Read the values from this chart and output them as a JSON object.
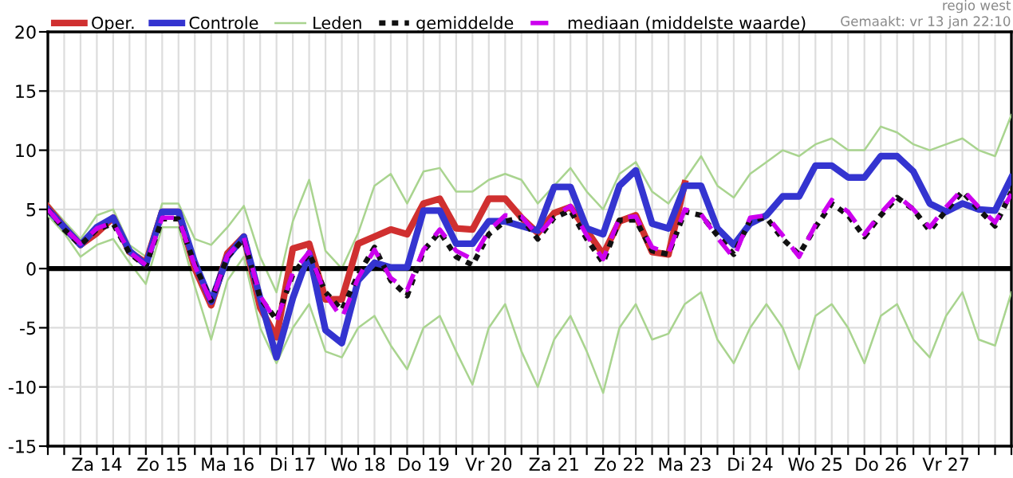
{
  "chart_data": {
    "type": "line",
    "categories": [
      null,
      null,
      null,
      "Za 14",
      null,
      null,
      null,
      "Zo 15",
      null,
      null,
      null,
      "Ma 16",
      null,
      null,
      null,
      "Di 17",
      null,
      null,
      null,
      "Wo 18",
      null,
      null,
      null,
      "Do 19",
      null,
      null,
      null,
      "Vr 20",
      null,
      null,
      null,
      "Za 21",
      null,
      null,
      null,
      "Zo 22",
      null,
      null,
      null,
      "Ma 23",
      null,
      null,
      null,
      "Di 24",
      null,
      null,
      null,
      "Wo 25",
      null,
      null,
      null,
      "Do 26",
      null,
      null,
      null,
      "Vr 27",
      null,
      null,
      null,
      null
    ],
    "series": [
      {
        "name": "Oper.",
        "color": "#d03030",
        "line_style": "solid",
        "values": [
          5.2,
          3.5,
          2.0,
          3.0,
          4.3,
          1.4,
          0.5,
          4.8,
          4.8,
          0.0,
          -3.1,
          1.3,
          2.7,
          -3.3,
          -5.8,
          1.7,
          2.1,
          -2.6,
          -2.6,
          2.1,
          2.7,
          3.3,
          2.9,
          5.5,
          5.9,
          3.4,
          3.3,
          5.9,
          5.9,
          4.3,
          3.0,
          4.7,
          5.2,
          3.2,
          1.2,
          4.0,
          4.5,
          1.4,
          1.2,
          7.2,
          null,
          null,
          null,
          null,
          null,
          null,
          null,
          null,
          null,
          null,
          null,
          null,
          null,
          null,
          null,
          null,
          null,
          null,
          null,
          null
        ]
      },
      {
        "name": "Controle",
        "color": "#3434d0",
        "line_style": "solid",
        "values": [
          5.0,
          3.5,
          2.0,
          3.5,
          4.3,
          1.5,
          0.3,
          4.8,
          4.8,
          0.5,
          -2.8,
          1.0,
          2.7,
          -2.5,
          -7.5,
          -2.5,
          1.3,
          -5.2,
          -6.3,
          -1.0,
          0.5,
          0.1,
          0.1,
          4.9,
          4.9,
          2.1,
          2.1,
          4.0,
          4.0,
          3.6,
          3.2,
          6.9,
          6.9,
          3.4,
          2.9,
          7.0,
          8.3,
          3.8,
          3.4,
          7.0,
          7.0,
          3.4,
          2.0,
          3.8,
          4.5,
          6.1,
          6.1,
          8.7,
          8.7,
          7.7,
          7.7,
          9.5,
          9.5,
          8.2,
          5.5,
          4.8,
          5.5,
          5.0,
          4.9,
          7.7
        ]
      },
      {
        "name": "Leden",
        "color": "#a9d48f",
        "line_style": "solid",
        "values": [
          5.5,
          4,
          2.5,
          4.5,
          5,
          2,
          1,
          5.5,
          5.5,
          2.5,
          2,
          3.5,
          5.3,
          1,
          -2,
          4,
          7.5,
          1.5,
          0,
          3,
          7,
          8,
          5.5,
          8.2,
          8.5,
          6.5,
          6.5,
          7.5,
          8,
          7.5,
          5.5,
          7,
          8.5,
          6.5,
          5,
          8,
          9,
          6.5,
          5.5,
          7.5,
          9.5,
          7,
          6,
          8,
          9,
          10,
          9.5,
          10.5,
          11,
          10,
          10,
          12,
          11.5,
          10.5,
          10,
          10.5,
          11,
          10,
          9.5,
          13
        ]
      },
      {
        "color": "#a9d48f",
        "line_style": "solid",
        "values": [
          4.5,
          3,
          1,
          2,
          2.5,
          0.5,
          -1.3,
          3.5,
          3.5,
          -1.5,
          -6,
          -1,
          1,
          -5,
          -8,
          -5,
          -3,
          -7,
          -7.5,
          -5,
          -4,
          -6.5,
          -8.5,
          -5,
          -4,
          -7,
          -9.8,
          -5,
          -3,
          -7,
          -10,
          -6,
          -4,
          -7,
          -10.5,
          -5,
          -3,
          -6,
          -5.5,
          -3,
          -2,
          -6,
          -8,
          -5,
          -3,
          -5,
          -8.5,
          -4,
          -3,
          -5,
          -8,
          -4,
          -3,
          -6,
          -7.5,
          -4,
          -2,
          -6,
          -6.5,
          -2
        ]
      },
      {
        "name": "gemiddelde",
        "color": "#111111",
        "line_style": "dotted",
        "values": [
          5.0,
          3.3,
          2.0,
          3.3,
          3.8,
          1.3,
          0.2,
          4.2,
          4.2,
          0.3,
          -2.7,
          1.0,
          2.5,
          -2.5,
          -4.3,
          -0.5,
          1.3,
          -2.0,
          -3.5,
          -0.5,
          1.8,
          -1.0,
          -2.3,
          1.5,
          3.1,
          1.0,
          0.3,
          2.9,
          4.0,
          4.3,
          2.5,
          4.3,
          4.9,
          2.5,
          0.5,
          4.1,
          4.1,
          1.5,
          1.2,
          4.8,
          4.5,
          2.8,
          1.2,
          4.1,
          4.3,
          2.5,
          1.2,
          3.5,
          5.5,
          4.5,
          2.7,
          4.5,
          6.0,
          5.0,
          3.2,
          4.9,
          6.5,
          5.0,
          3.6,
          6.5
        ]
      },
      {
        "name": "mediaan (middelste waarde)",
        "color": "#cc00ee",
        "line_style": "dashed",
        "values": [
          5.0,
          3.4,
          2.1,
          3.4,
          3.9,
          1.4,
          0.3,
          4.3,
          4.3,
          0.2,
          -2.8,
          1.1,
          2.6,
          -2.3,
          -4.5,
          -0.3,
          1.4,
          -2.2,
          -4.2,
          -0.8,
          1.6,
          -0.8,
          -1.8,
          1.6,
          3.3,
          1.5,
          0.8,
          3.2,
          4.5,
          4.4,
          2.8,
          4.4,
          5.3,
          2.8,
          0.8,
          4.3,
          4.4,
          1.8,
          1.3,
          5.0,
          4.6,
          2.6,
          0.9,
          4.3,
          4.5,
          2.8,
          1.0,
          3.7,
          5.8,
          4.8,
          2.9,
          4.7,
          6.2,
          5.0,
          3.5,
          5.2,
          6.7,
          5.2,
          3.9,
          6.3
        ]
      }
    ],
    "ylim": [
      -15,
      20
    ],
    "yticks": [
      -15,
      -10,
      -5,
      0,
      5,
      10,
      15,
      20
    ],
    "grid": true,
    "legend": "top",
    "marker": "none",
    "ref_lines": [
      {
        "axis": "y",
        "value": 0,
        "color": "#000000"
      }
    ],
    "annotations": [
      "regio west",
      "Gemaakt: vr 13 jan 22:10"
    ]
  }
}
